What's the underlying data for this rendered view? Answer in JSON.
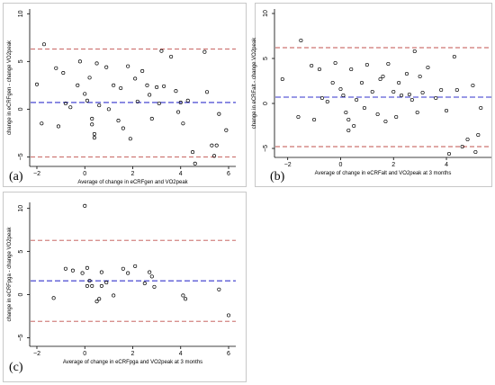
{
  "chart_data": [
    {
      "type": "scatter",
      "panel_label": "(a)",
      "xlabel": "Average of change in eCRFgen and VO2peak",
      "ylabel": "change in eCRFgen - change VO2peak",
      "xticks": [
        -2,
        0,
        2,
        4,
        6
      ],
      "yticks": [
        -5,
        0,
        5,
        10
      ],
      "xlim": [
        -2.3,
        6.3
      ],
      "ylim": [
        -6,
        10.5
      ],
      "reference_lines": [
        {
          "label": "upper limit of agreement",
          "y": 6.3,
          "color": "#c0504d"
        },
        {
          "label": "mean difference",
          "y": 0.7,
          "color": "#3333cc"
        },
        {
          "label": "lower limit of agreement",
          "y": -5.0,
          "color": "#c0504d"
        }
      ],
      "points": [
        [
          -2.0,
          2.6
        ],
        [
          -1.8,
          -1.5
        ],
        [
          -1.7,
          6.8
        ],
        [
          -1.2,
          4.3
        ],
        [
          -1.1,
          -1.8
        ],
        [
          -0.9,
          3.8
        ],
        [
          -0.8,
          0.6
        ],
        [
          -0.6,
          0.2
        ],
        [
          -0.3,
          2.5
        ],
        [
          -0.2,
          5.0
        ],
        [
          0.0,
          1.6
        ],
        [
          0.1,
          0.9
        ],
        [
          0.2,
          3.3
        ],
        [
          0.3,
          -1.0
        ],
        [
          0.3,
          -1.6
        ],
        [
          0.4,
          -2.6
        ],
        [
          0.4,
          -3.0
        ],
        [
          0.5,
          4.8
        ],
        [
          0.6,
          0.4
        ],
        [
          0.9,
          4.4
        ],
        [
          1.0,
          0.0
        ],
        [
          1.2,
          2.5
        ],
        [
          1.4,
          -1.2
        ],
        [
          1.5,
          2.2
        ],
        [
          1.6,
          -2.0
        ],
        [
          1.8,
          4.5
        ],
        [
          1.9,
          -3.1
        ],
        [
          2.1,
          3.2
        ],
        [
          2.2,
          0.8
        ],
        [
          2.4,
          4.0
        ],
        [
          2.6,
          2.5
        ],
        [
          2.7,
          1.5
        ],
        [
          2.8,
          -1.0
        ],
        [
          3.0,
          2.3
        ],
        [
          3.1,
          0.6
        ],
        [
          3.2,
          6.1
        ],
        [
          3.3,
          2.4
        ],
        [
          3.6,
          5.5
        ],
        [
          3.8,
          1.9
        ],
        [
          3.9,
          -0.3
        ],
        [
          4.0,
          0.7
        ],
        [
          4.1,
          -1.5
        ],
        [
          4.3,
          0.9
        ],
        [
          4.5,
          -4.5
        ],
        [
          4.6,
          -5.7
        ],
        [
          5.0,
          6.0
        ],
        [
          5.1,
          1.8
        ],
        [
          5.3,
          -3.8
        ],
        [
          5.4,
          -4.9
        ],
        [
          5.5,
          -3.8
        ],
        [
          5.6,
          -0.5
        ],
        [
          5.9,
          -2.2
        ]
      ]
    },
    {
      "type": "scatter",
      "panel_label": "(b)",
      "xlabel": "Average of change in eCRFalt and VO2peak at 3 months",
      "ylabel": "change in eCRFalt - change VO2peak",
      "xticks": [
        -2,
        0,
        2,
        4
      ],
      "yticks": [
        -5,
        0,
        5,
        10
      ],
      "xlim": [
        -2.5,
        5.7
      ],
      "ylim": [
        -6,
        10.5
      ],
      "reference_lines": [
        {
          "label": "upper limit of agreement",
          "y": 6.2,
          "color": "#c0504d"
        },
        {
          "label": "mean difference",
          "y": 0.7,
          "color": "#3333cc"
        },
        {
          "label": "lower limit of agreement",
          "y": -4.8,
          "color": "#c0504d"
        }
      ],
      "points": [
        [
          -2.2,
          2.7
        ],
        [
          -1.6,
          -1.5
        ],
        [
          -1.5,
          7.0
        ],
        [
          -1.1,
          4.2
        ],
        [
          -1.0,
          -1.8
        ],
        [
          -0.8,
          3.8
        ],
        [
          -0.7,
          0.6
        ],
        [
          -0.5,
          0.2
        ],
        [
          -0.3,
          2.3
        ],
        [
          -0.2,
          4.5
        ],
        [
          0.0,
          1.6
        ],
        [
          0.1,
          0.9
        ],
        [
          0.2,
          -1.0
        ],
        [
          0.3,
          -1.8
        ],
        [
          0.3,
          -3.0
        ],
        [
          0.4,
          3.8
        ],
        [
          0.5,
          -2.5
        ],
        [
          0.6,
          0.4
        ],
        [
          0.8,
          2.3
        ],
        [
          0.9,
          -0.5
        ],
        [
          1.0,
          4.3
        ],
        [
          1.2,
          1.3
        ],
        [
          1.4,
          -1.2
        ],
        [
          1.5,
          2.7
        ],
        [
          1.6,
          3.0
        ],
        [
          1.7,
          -2.0
        ],
        [
          1.8,
          4.4
        ],
        [
          2.0,
          1.3
        ],
        [
          2.1,
          -1.5
        ],
        [
          2.2,
          2.3
        ],
        [
          2.3,
          0.9
        ],
        [
          2.5,
          3.3
        ],
        [
          2.6,
          1.0
        ],
        [
          2.7,
          0.4
        ],
        [
          2.8,
          5.8
        ],
        [
          2.9,
          -1.0
        ],
        [
          3.0,
          3.0
        ],
        [
          3.1,
          1.2
        ],
        [
          3.3,
          4.0
        ],
        [
          3.6,
          0.6
        ],
        [
          3.8,
          1.5
        ],
        [
          4.0,
          -0.8
        ],
        [
          4.1,
          -5.6
        ],
        [
          4.3,
          5.2
        ],
        [
          4.4,
          1.5
        ],
        [
          4.6,
          -4.8
        ],
        [
          4.8,
          -4.0
        ],
        [
          5.0,
          2.0
        ],
        [
          5.1,
          -5.4
        ],
        [
          5.2,
          -3.5
        ],
        [
          5.3,
          -0.5
        ]
      ]
    },
    {
      "type": "scatter",
      "panel_label": "(c)",
      "xlabel": "Average of change in eCRFpga and VO2peak at 3 months",
      "ylabel": "change in eCRFpga - change VO2peak",
      "xticks": [
        -2,
        0,
        2,
        4,
        6
      ],
      "yticks": [
        -5,
        0,
        5,
        10
      ],
      "xlim": [
        -2.3,
        6.3
      ],
      "ylim": [
        -6,
        10.7
      ],
      "reference_lines": [
        {
          "label": "upper limit of agreement",
          "y": 6.3,
          "color": "#c0504d"
        },
        {
          "label": "mean difference",
          "y": 1.6,
          "color": "#3333cc"
        },
        {
          "label": "lower limit of agreement",
          "y": -3.1,
          "color": "#c0504d"
        }
      ],
      "points": [
        [
          -1.3,
          -0.4
        ],
        [
          -0.8,
          3.0
        ],
        [
          -0.5,
          2.8
        ],
        [
          -0.1,
          2.5
        ],
        [
          0.0,
          10.3
        ],
        [
          0.1,
          3.1
        ],
        [
          0.1,
          1.0
        ],
        [
          0.2,
          1.6
        ],
        [
          0.3,
          1.0
        ],
        [
          0.5,
          -0.8
        ],
        [
          0.6,
          -0.5
        ],
        [
          0.7,
          2.6
        ],
        [
          0.7,
          1.0
        ],
        [
          0.9,
          1.4
        ],
        [
          1.2,
          -0.1
        ],
        [
          1.6,
          3.0
        ],
        [
          1.8,
          2.5
        ],
        [
          2.1,
          3.3
        ],
        [
          2.5,
          1.3
        ],
        [
          2.7,
          2.6
        ],
        [
          2.8,
          2.1
        ],
        [
          2.9,
          0.9
        ],
        [
          4.1,
          -0.1
        ],
        [
          4.2,
          -0.5
        ],
        [
          5.6,
          0.6
        ],
        [
          6.0,
          -2.4
        ]
      ]
    }
  ]
}
